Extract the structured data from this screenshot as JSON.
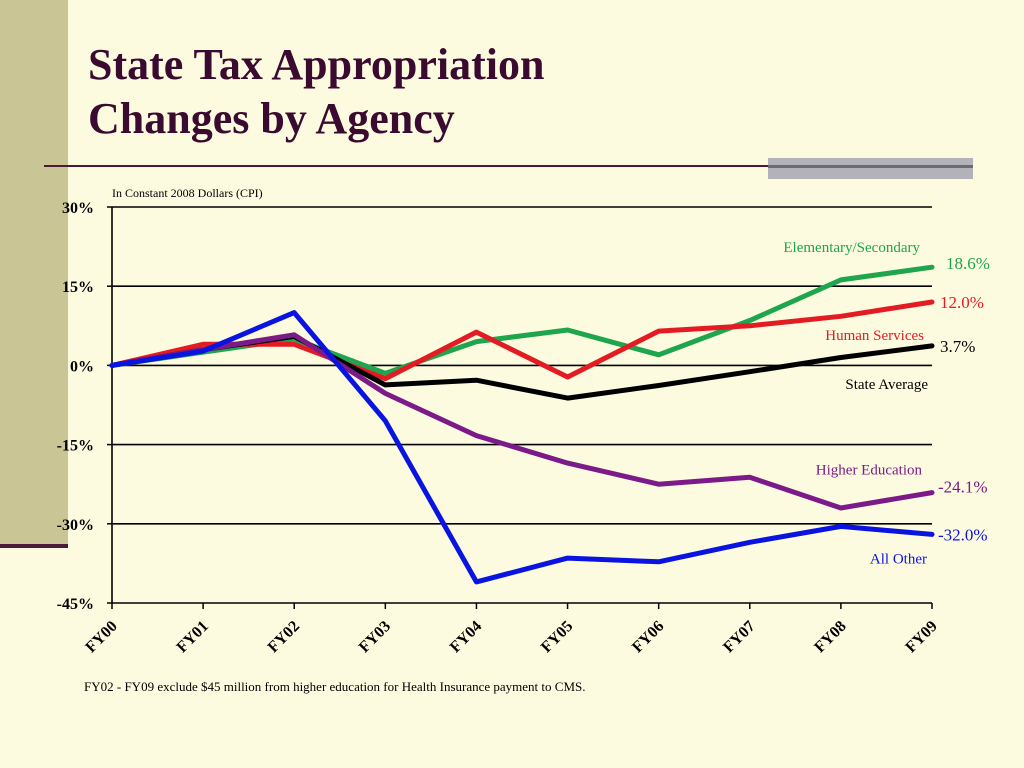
{
  "slide": {
    "title_line1": "State Tax Appropriation",
    "title_line2": "Changes by Agency",
    "footnote": "FY02 - FY09 exclude $45 million from higher education for Health Insurance payment to CMS."
  },
  "chart_data": {
    "type": "line",
    "subtitle": "In Constant 2008 Dollars (CPI)",
    "categories": [
      "FY00",
      "FY01",
      "FY02",
      "FY03",
      "FY04",
      "FY05",
      "FY06",
      "FY07",
      "FY08",
      "FY09"
    ],
    "y_ticks": [
      "30%",
      "15%",
      "0%",
      "-15%",
      "-30%",
      "-45%"
    ],
    "ylim": [
      -45,
      30
    ],
    "grid": true,
    "series": [
      {
        "name": "Elementary/Secondary",
        "color": "#1ea54e",
        "end_label": "18.6%",
        "values": [
          0,
          2.5,
          5,
          -1.5,
          4.5,
          6.7,
          2,
          8.5,
          16.2,
          18.6
        ]
      },
      {
        "name": "Human Services",
        "color": "#e31b23",
        "end_label": "12.0%",
        "values": [
          0,
          4,
          4,
          -2.5,
          6.3,
          -2.2,
          6.5,
          7.5,
          9.3,
          12.0
        ]
      },
      {
        "name": "State Average",
        "color": "#000000",
        "end_label": "3.7%",
        "values": [
          0,
          3,
          5.5,
          -3.7,
          -2.8,
          -6.2,
          -3.8,
          -1.2,
          1.5,
          3.7
        ]
      },
      {
        "name": "Higher Education",
        "color": "#7b1a88",
        "end_label": "-24.1%",
        "values": [
          0,
          3,
          5.8,
          -5.3,
          -13.3,
          -18.5,
          -22.5,
          -21.2,
          -27,
          -24.1
        ]
      },
      {
        "name": "All Other",
        "color": "#0a14e0",
        "end_label": "-32.0%",
        "values": [
          0,
          2.7,
          10,
          -10.5,
          -41,
          -36.5,
          -37.2,
          -33.5,
          -30.5,
          -32.0
        ]
      }
    ]
  }
}
